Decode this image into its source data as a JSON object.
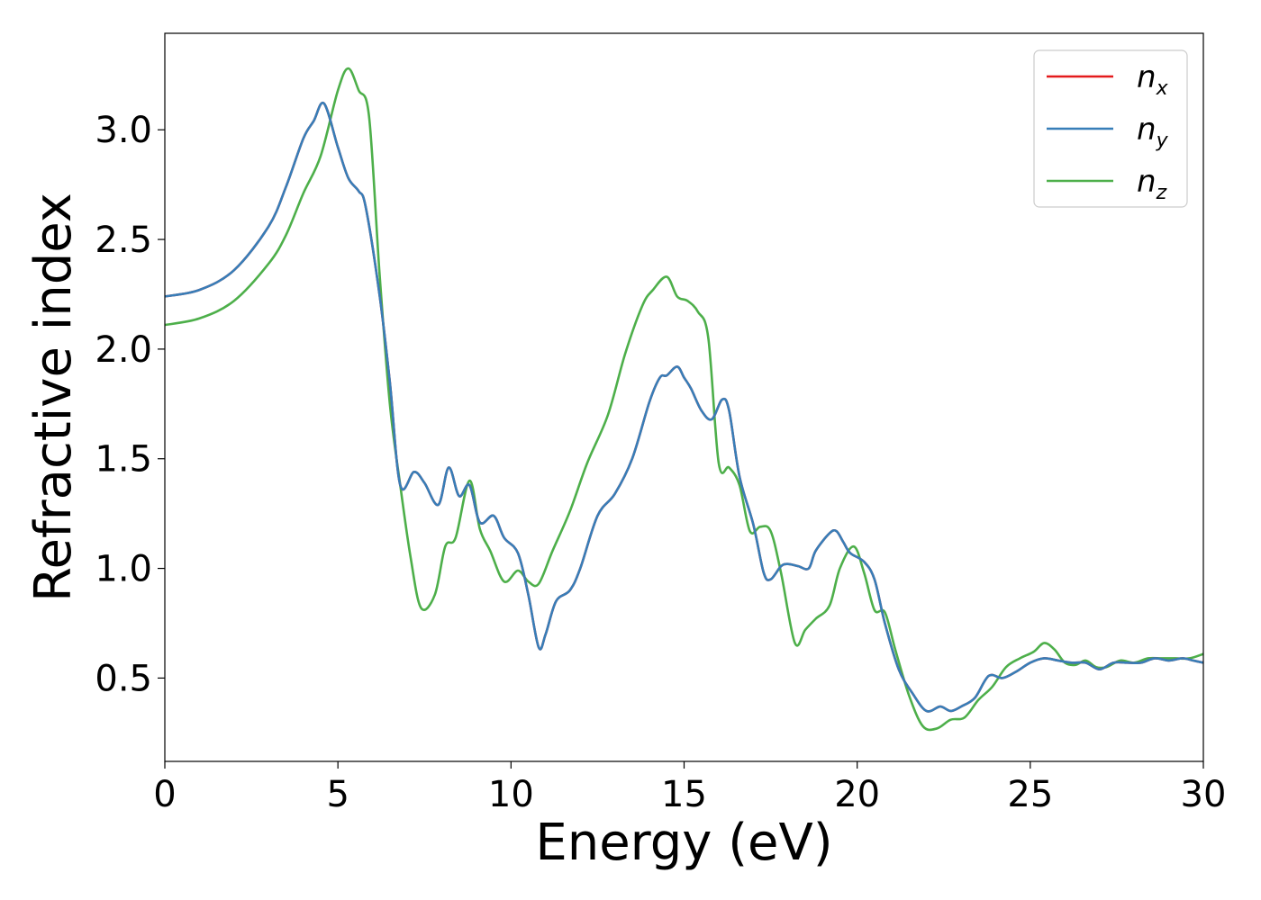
{
  "chart_data": {
    "type": "line",
    "xlabel": "Energy (eV)",
    "ylabel": "Refractive index",
    "xlim": [
      0,
      30
    ],
    "ylim": [
      0.12,
      3.44
    ],
    "xticks": [
      0,
      5,
      10,
      15,
      20,
      25,
      30
    ],
    "xtick_labels": [
      "0",
      "5",
      "10",
      "15",
      "20",
      "25",
      "30"
    ],
    "yticks": [
      0.5,
      1.0,
      1.5,
      2.0,
      2.5,
      3.0
    ],
    "ytick_labels": [
      "0.5",
      "1.0",
      "1.5",
      "2.0",
      "2.5",
      "3.0"
    ],
    "grid": false,
    "legend": {
      "placement": "top-right"
    },
    "series": [
      {
        "name": "n_x",
        "label_main": "n",
        "label_sub": "x",
        "color": "#e41a1c",
        "x": [
          0,
          1,
          2,
          3,
          3.5,
          4,
          4.3,
          4.6,
          5,
          5.3,
          5.6,
          5.8,
          6.2,
          6.5,
          6.8,
          7.2,
          7.5,
          7.9,
          8.2,
          8.5,
          8.8,
          9.1,
          9.5,
          9.8,
          10.2,
          10.5,
          10.8,
          11,
          11.3,
          11.7,
          12,
          12.5,
          13,
          13.5,
          14,
          14.3,
          14.5,
          14.8,
          15,
          15.2,
          15.5,
          15.8,
          16.1,
          16.3,
          16.6,
          17,
          17.3,
          17.5,
          17.8,
          18,
          18.3,
          18.6,
          18.8,
          19.2,
          19.4,
          19.6,
          19.8,
          20.2,
          20.5,
          20.8,
          21.2,
          21.6,
          22,
          22.4,
          22.7,
          23,
          23.4,
          23.8,
          24.2,
          24.6,
          25,
          25.4,
          25.8,
          26.2,
          26.6,
          27,
          27.4,
          27.8,
          28.2,
          28.6,
          29,
          29.4,
          29.7,
          30
        ],
        "y": [
          2.24,
          2.27,
          2.36,
          2.56,
          2.74,
          2.96,
          3.04,
          3.12,
          2.92,
          2.78,
          2.72,
          2.65,
          2.25,
          1.85,
          1.38,
          1.44,
          1.39,
          1.29,
          1.46,
          1.33,
          1.38,
          1.21,
          1.24,
          1.14,
          1.07,
          0.88,
          0.64,
          0.7,
          0.85,
          0.9,
          1.0,
          1.24,
          1.34,
          1.5,
          1.76,
          1.87,
          1.88,
          1.92,
          1.87,
          1.82,
          1.72,
          1.68,
          1.77,
          1.72,
          1.42,
          1.2,
          0.98,
          0.95,
          1.01,
          1.02,
          1.01,
          1.0,
          1.08,
          1.16,
          1.17,
          1.12,
          1.07,
          1.03,
          0.95,
          0.75,
          0.54,
          0.43,
          0.35,
          0.37,
          0.35,
          0.37,
          0.41,
          0.51,
          0.5,
          0.53,
          0.57,
          0.59,
          0.58,
          0.57,
          0.57,
          0.54,
          0.57,
          0.57,
          0.57,
          0.59,
          0.58,
          0.59,
          0.58,
          0.57
        ]
      },
      {
        "name": "n_y",
        "label_main": "n",
        "label_sub": "y",
        "color": "#377eb8",
        "x": [
          0,
          1,
          2,
          3,
          3.5,
          4,
          4.3,
          4.6,
          5,
          5.3,
          5.6,
          5.8,
          6.2,
          6.5,
          6.8,
          7.2,
          7.5,
          7.9,
          8.2,
          8.5,
          8.8,
          9.1,
          9.5,
          9.8,
          10.2,
          10.5,
          10.8,
          11,
          11.3,
          11.7,
          12,
          12.5,
          13,
          13.5,
          14,
          14.3,
          14.5,
          14.8,
          15,
          15.2,
          15.5,
          15.8,
          16.1,
          16.3,
          16.6,
          17,
          17.3,
          17.5,
          17.8,
          18,
          18.3,
          18.6,
          18.8,
          19.2,
          19.4,
          19.6,
          19.8,
          20.2,
          20.5,
          20.8,
          21.2,
          21.6,
          22,
          22.4,
          22.7,
          23,
          23.4,
          23.8,
          24.2,
          24.6,
          25,
          25.4,
          25.8,
          26.2,
          26.6,
          27,
          27.4,
          27.8,
          28.2,
          28.6,
          29,
          29.4,
          29.7,
          30
        ],
        "y": [
          2.24,
          2.27,
          2.36,
          2.56,
          2.74,
          2.96,
          3.04,
          3.12,
          2.92,
          2.78,
          2.72,
          2.65,
          2.25,
          1.85,
          1.38,
          1.44,
          1.39,
          1.29,
          1.46,
          1.33,
          1.38,
          1.21,
          1.24,
          1.14,
          1.07,
          0.88,
          0.64,
          0.7,
          0.85,
          0.9,
          1.0,
          1.24,
          1.34,
          1.5,
          1.76,
          1.87,
          1.88,
          1.92,
          1.87,
          1.82,
          1.72,
          1.68,
          1.77,
          1.72,
          1.42,
          1.2,
          0.98,
          0.95,
          1.01,
          1.02,
          1.01,
          1.0,
          1.08,
          1.16,
          1.17,
          1.12,
          1.07,
          1.03,
          0.95,
          0.75,
          0.54,
          0.43,
          0.35,
          0.37,
          0.35,
          0.37,
          0.41,
          0.51,
          0.5,
          0.53,
          0.57,
          0.59,
          0.58,
          0.57,
          0.57,
          0.54,
          0.57,
          0.57,
          0.57,
          0.59,
          0.58,
          0.59,
          0.58,
          0.57
        ]
      },
      {
        "name": "n_z",
        "label_main": "n",
        "label_sub": "z",
        "color": "#4daf4a",
        "x": [
          0,
          1,
          2,
          3,
          3.5,
          4,
          4.5,
          5,
          5.3,
          5.6,
          5.9,
          6.2,
          6.5,
          6.8,
          7.1,
          7.4,
          7.8,
          8.1,
          8.4,
          8.8,
          9.1,
          9.4,
          9.8,
          10.2,
          10.5,
          10.8,
          11.2,
          11.7,
          12.2,
          12.8,
          13.3,
          13.8,
          14.1,
          14.5,
          14.8,
          15.1,
          15.4,
          15.7,
          16,
          16.3,
          16.6,
          16.9,
          17.2,
          17.5,
          17.8,
          18.2,
          18.5,
          18.8,
          19.2,
          19.5,
          19.9,
          20.2,
          20.5,
          20.8,
          21.1,
          21.5,
          21.9,
          22.3,
          22.7,
          23.1,
          23.5,
          23.9,
          24.3,
          24.7,
          25.1,
          25.4,
          25.7,
          26,
          26.3,
          26.6,
          26.9,
          27.2,
          27.6,
          28,
          28.4,
          28.8,
          29.2,
          29.6,
          30
        ],
        "y": [
          2.11,
          2.14,
          2.22,
          2.39,
          2.52,
          2.71,
          2.88,
          3.18,
          3.28,
          3.18,
          3.06,
          2.35,
          1.75,
          1.38,
          1.05,
          0.82,
          0.88,
          1.1,
          1.14,
          1.4,
          1.18,
          1.08,
          0.94,
          0.99,
          0.94,
          0.93,
          1.08,
          1.26,
          1.48,
          1.7,
          1.98,
          2.2,
          2.27,
          2.33,
          2.24,
          2.22,
          2.17,
          2.05,
          1.48,
          1.46,
          1.38,
          1.17,
          1.19,
          1.17,
          0.98,
          0.66,
          0.72,
          0.77,
          0.83,
          1.0,
          1.1,
          0.98,
          0.81,
          0.8,
          0.63,
          0.42,
          0.28,
          0.27,
          0.31,
          0.32,
          0.4,
          0.46,
          0.55,
          0.59,
          0.62,
          0.66,
          0.63,
          0.57,
          0.56,
          0.58,
          0.55,
          0.55,
          0.58,
          0.57,
          0.59,
          0.59,
          0.59,
          0.59,
          0.61
        ]
      }
    ]
  }
}
